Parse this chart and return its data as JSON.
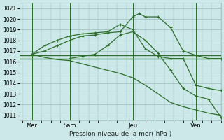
{
  "title": "Pression niveau de la mer( hPa )",
  "bg_color": "#cce8e8",
  "grid_color": "#99bbbb",
  "line_color": "#2d6e2d",
  "ylim": [
    1010.5,
    1021.5
  ],
  "yticks": [
    1011,
    1012,
    1013,
    1014,
    1015,
    1016,
    1017,
    1018,
    1019,
    1020,
    1021
  ],
  "xlim": [
    0,
    16
  ],
  "day_labels": [
    "Mer",
    "Sam",
    "Jeu",
    "Ven"
  ],
  "day_positions": [
    1,
    4,
    9,
    14
  ],
  "vline_positions": [
    1,
    4,
    9,
    14
  ],
  "series": [
    {
      "x": [
        0,
        1,
        2,
        3,
        4,
        5,
        6,
        7,
        8,
        9,
        10,
        11,
        12,
        13,
        14,
        15,
        16
      ],
      "y": [
        1016.6,
        1016.6,
        1016.6,
        1016.6,
        1016.6,
        1016.6,
        1016.6,
        1016.6,
        1016.6,
        1016.6,
        1016.6,
        1016.6,
        1016.6,
        1016.6,
        1016.6,
        1016.6,
        1016.6
      ],
      "markers": false,
      "lw": 1.0
    },
    {
      "x": [
        0,
        1,
        2,
        3,
        4,
        5,
        6,
        7,
        8,
        9,
        10,
        11,
        12,
        13,
        14,
        15,
        16
      ],
      "y": [
        1016.3,
        1016.3,
        1016.3,
        1016.3,
        1016.3,
        1016.3,
        1016.3,
        1016.3,
        1016.3,
        1016.3,
        1016.3,
        1016.3,
        1016.3,
        1016.3,
        1016.3,
        1016.3,
        1016.3
      ],
      "markers": false,
      "lw": 1.0
    },
    {
      "x": [
        1,
        2,
        3,
        4,
        5,
        6,
        7,
        8,
        9,
        9.5,
        10,
        11,
        12,
        13,
        14,
        15,
        16
      ],
      "y": [
        1016.7,
        1017.0,
        1017.5,
        1018.0,
        1018.4,
        1018.5,
        1018.7,
        1018.8,
        1020.2,
        1020.5,
        1020.2,
        1020.2,
        1019.2,
        1017.0,
        1016.6,
        1016.3,
        1016.3
      ],
      "markers": true,
      "lw": 0.9
    },
    {
      "x": [
        1,
        2,
        3,
        4,
        5,
        6,
        7,
        8,
        9,
        10,
        11,
        12,
        13,
        14,
        15,
        16
      ],
      "y": [
        1016.7,
        1017.5,
        1018.0,
        1018.4,
        1018.6,
        1018.7,
        1018.8,
        1019.5,
        1019.0,
        1017.2,
        1016.5,
        1016.3,
        1016.3,
        1013.8,
        1013.5,
        1013.3
      ],
      "markers": true,
      "lw": 0.9
    },
    {
      "x": [
        1,
        2,
        3,
        4,
        5,
        6,
        7,
        8,
        9,
        10,
        11,
        12,
        13,
        14,
        15,
        16
      ],
      "y": [
        1016.7,
        1016.4,
        1016.2,
        1016.1,
        1015.8,
        1015.5,
        1015.2,
        1014.9,
        1014.5,
        1013.8,
        1013.0,
        1012.2,
        1011.8,
        1011.5,
        1011.2,
        1011.0
      ],
      "markers": false,
      "lw": 0.9
    },
    {
      "x": [
        4,
        5,
        6,
        7,
        8,
        9,
        10,
        11,
        12,
        13,
        14,
        15,
        16
      ],
      "y": [
        1016.3,
        1016.5,
        1016.7,
        1017.5,
        1018.5,
        1018.8,
        1018.0,
        1016.8,
        1015.2,
        1013.5,
        1012.8,
        1012.5,
        1010.8
      ],
      "markers": true,
      "lw": 0.9
    }
  ]
}
